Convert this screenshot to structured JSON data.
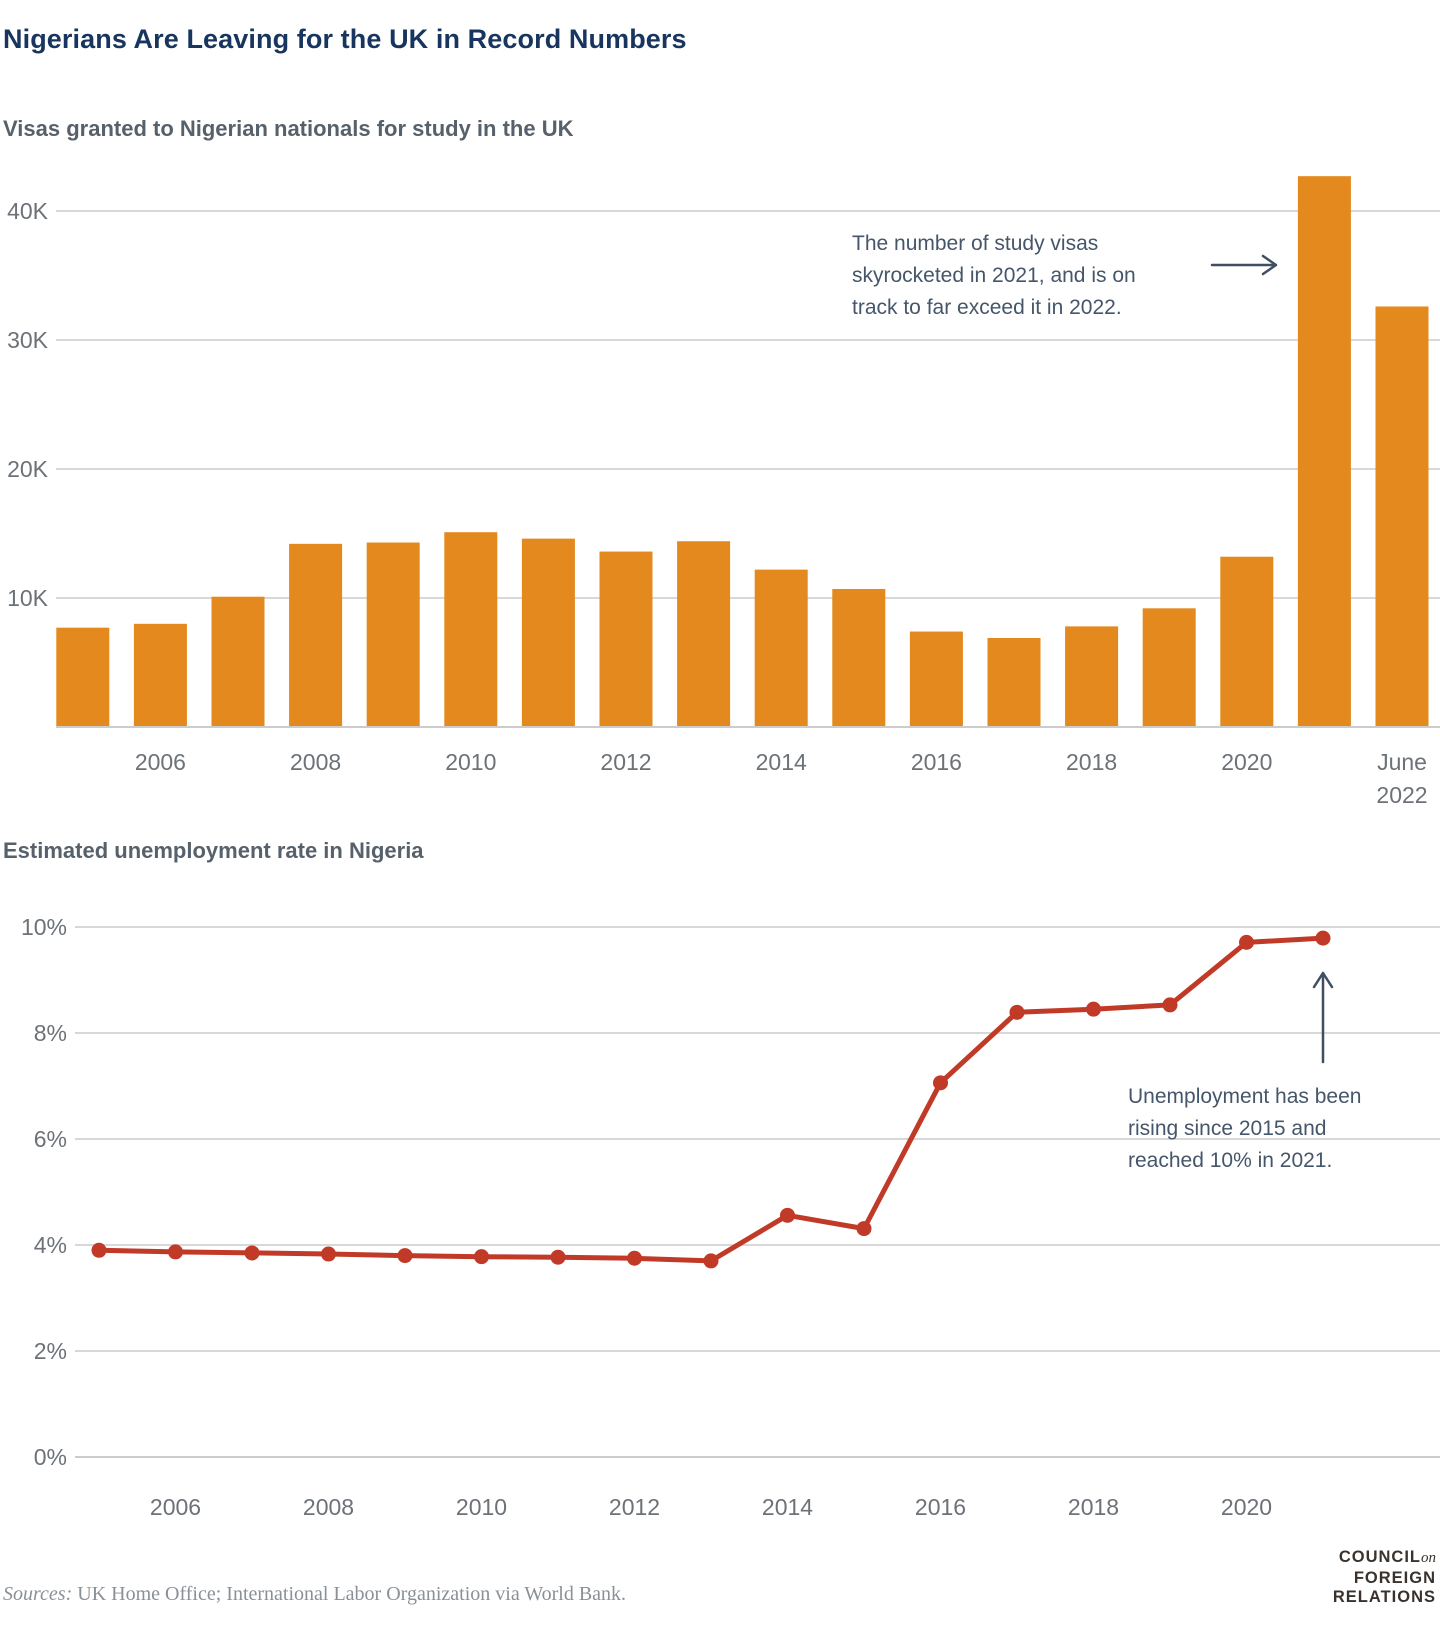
{
  "page": {
    "title": "Nigerians Are Leaving for the UK in Record Numbers",
    "sources_label": "Sources:",
    "sources_text": " UK Home Office; International Labor Organization via World Bank.",
    "logo": {
      "line1_main": "COUNCIL",
      "line1_accent": "on",
      "line2": "FOREIGN",
      "line3": "RELATIONS"
    }
  },
  "colors": {
    "title_navy": "#17355E",
    "subtitle_gray": "#57616B",
    "axis_gray": "#6C7278",
    "gridline": "#D8D8D8",
    "baseline": "#CCCCCC",
    "bar_orange": "#E3891D",
    "line_red": "#C13A28",
    "annotation_slate": "#46566A",
    "arrow_slate": "#3F4E63",
    "sources_gray": "#8A9097",
    "logo_brown": "#3A322D"
  },
  "chart_data": [
    {
      "type": "bar",
      "title": "Visas granted to Nigerian nationals for study in the UK",
      "categories": [
        "2005",
        "2006",
        "2007",
        "2008",
        "2009",
        "2010",
        "2011",
        "2012",
        "2013",
        "2014",
        "2015",
        "2016",
        "2017",
        "2018",
        "2019",
        "2020",
        "2021",
        "June 2022"
      ],
      "values": [
        7700,
        8000,
        10100,
        14200,
        14300,
        15100,
        14600,
        13600,
        14400,
        12200,
        10700,
        7400,
        6900,
        7800,
        9200,
        13200,
        42700,
        32600
      ],
      "ylim": [
        0,
        45000
      ],
      "grid": true,
      "legend": "none",
      "y_ticks": [
        {
          "value": 10000,
          "label": "10K"
        },
        {
          "value": 20000,
          "label": "20K"
        },
        {
          "value": 30000,
          "label": "30K"
        },
        {
          "value": 40000,
          "label": "40K"
        }
      ],
      "x_ticks": [
        {
          "i": 1,
          "label": "2006"
        },
        {
          "i": 3,
          "label": "2008"
        },
        {
          "i": 5,
          "label": "2010"
        },
        {
          "i": 7,
          "label": "2012"
        },
        {
          "i": 9,
          "label": "2014"
        },
        {
          "i": 11,
          "label": "2016"
        },
        {
          "i": 13,
          "label": "2018"
        },
        {
          "i": 15,
          "label": "2020"
        },
        {
          "i": 17,
          "label": "June\n2022"
        }
      ],
      "annotation": {
        "text": "The number of study visas\nskyrocketed in 2021, and is on\ntrack to far exceed it in 2022.",
        "arrow_direction": "right",
        "points_to": "2021"
      }
    },
    {
      "type": "line",
      "title": "Estimated unemployment rate in Nigeria",
      "x": [
        2005,
        2006,
        2007,
        2008,
        2009,
        2010,
        2011,
        2012,
        2013,
        2014,
        2015,
        2016,
        2017,
        2018,
        2019,
        2020,
        2021
      ],
      "values": [
        3.9,
        3.87,
        3.85,
        3.83,
        3.8,
        3.78,
        3.77,
        3.75,
        3.7,
        4.56,
        4.31,
        7.06,
        8.39,
        8.45,
        8.53,
        9.71,
        9.79
      ],
      "ylim": [
        0,
        10.6
      ],
      "grid": true,
      "legend": "none",
      "markers": true,
      "y_ticks": [
        {
          "value": 0,
          "label": "0%"
        },
        {
          "value": 2,
          "label": "2%"
        },
        {
          "value": 4,
          "label": "4%"
        },
        {
          "value": 6,
          "label": "6%"
        },
        {
          "value": 8,
          "label": "8%"
        },
        {
          "value": 10,
          "label": "10%"
        }
      ],
      "x_ticks": [
        {
          "i": 1,
          "label": "2006"
        },
        {
          "i": 3,
          "label": "2008"
        },
        {
          "i": 5,
          "label": "2010"
        },
        {
          "i": 7,
          "label": "2012"
        },
        {
          "i": 9,
          "label": "2014"
        },
        {
          "i": 11,
          "label": "2016"
        },
        {
          "i": 13,
          "label": "2018"
        },
        {
          "i": 15,
          "label": "2020"
        }
      ],
      "annotation": {
        "text": "Unemployment has been\nrising since 2015 and\nreached 10% in 2021.",
        "arrow_direction": "up",
        "points_to": "2021"
      }
    }
  ]
}
